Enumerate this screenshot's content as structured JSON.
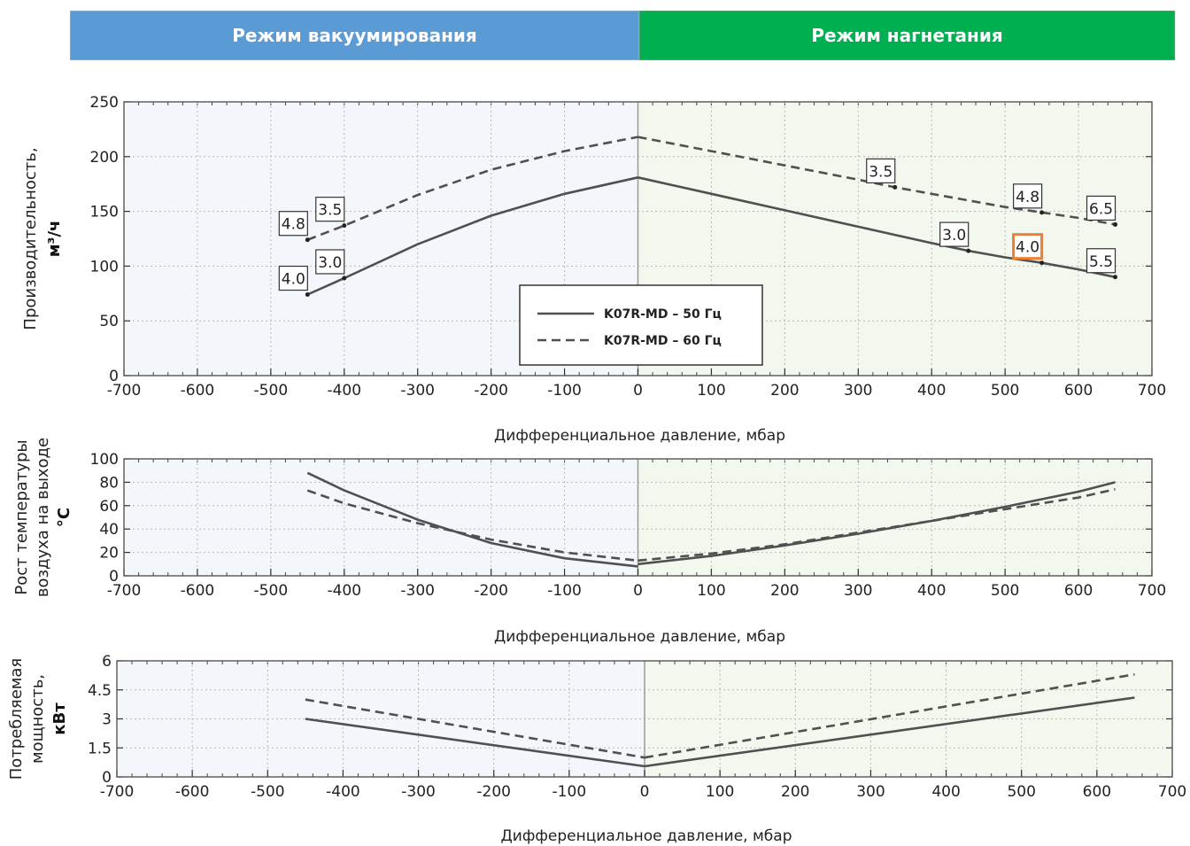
{
  "header": {
    "vacuum_label": "Режим вакуумирования",
    "pressure_label": "Режим нагнетания",
    "vacuum_color": "#5b9bd5",
    "pressure_color": "#00b050"
  },
  "colors": {
    "vacuum_bg": "#f3f7fc",
    "pressure_bg": "#f3f8ef",
    "line": "#505050",
    "highlight": "#ed7d31"
  },
  "legend": {
    "solid_label": "K07R-MD – 50 Гц",
    "dashed_label": "K07R-MD – 60 Гц"
  },
  "chart_data": [
    {
      "type": "line",
      "title": "",
      "xlabel": "Дифференциальное давление, мбар",
      "ylabel_line1": "Производительность,",
      "ylabel_line2": "м³/ч",
      "xlim": [
        -700,
        700
      ],
      "ylim": [
        0,
        250
      ],
      "xticks": [
        -700,
        -600,
        -500,
        -400,
        -300,
        -200,
        -100,
        0,
        100,
        200,
        300,
        400,
        500,
        600,
        700
      ],
      "yticks": [
        0,
        50,
        100,
        150,
        200,
        250
      ],
      "grid": true,
      "legend_position": "center",
      "series": [
        {
          "name": "K07R-MD – 50 Гц",
          "style": "solid",
          "vacuum": {
            "x": [
              -450,
              -400,
              -300,
              -200,
              -100,
              0
            ],
            "y": [
              74,
              89,
              120,
              146,
              166,
              181
            ]
          },
          "pressure": {
            "x": [
              0,
              100,
              200,
              300,
              400,
              450,
              500,
              550,
              600,
              650
            ],
            "y": [
              181,
              166,
              151,
              136,
              121,
              114,
              108,
              103,
              97,
              90
            ]
          }
        },
        {
          "name": "K07R-MD – 60 Гц",
          "style": "dashed",
          "vacuum": {
            "x": [
              -450,
              -400,
              -300,
              -200,
              -100,
              0
            ],
            "y": [
              124,
              137,
              165,
              188,
              205,
              218
            ]
          },
          "pressure": {
            "x": [
              0,
              100,
              200,
              300,
              350,
              400,
              500,
              550,
              600,
              650
            ],
            "y": [
              218,
              205,
              192,
              179,
              172,
              166,
              154,
              149,
              144,
              138
            ]
          }
        }
      ],
      "annotations": [
        {
          "text": "4.8",
          "x": -450,
          "y": 124
        },
        {
          "text": "3.5",
          "x": -400,
          "y": 137
        },
        {
          "text": "4.0",
          "x": -450,
          "y": 74
        },
        {
          "text": "3.0",
          "x": -400,
          "y": 89
        },
        {
          "text": "3.5",
          "x": 350,
          "y": 172
        },
        {
          "text": "4.8",
          "x": 550,
          "y": 149
        },
        {
          "text": "6.5",
          "x": 650,
          "y": 138
        },
        {
          "text": "3.0",
          "x": 450,
          "y": 114
        },
        {
          "text": "4.0",
          "x": 550,
          "y": 103,
          "highlight": true
        },
        {
          "text": "5.5",
          "x": 650,
          "y": 90
        }
      ]
    },
    {
      "type": "line",
      "title": "",
      "xlabel": "Дифференциальное давление, мбар",
      "ylabel_line1": "Рост температуры",
      "ylabel_line2": "воздуха на выходе",
      "ylabel_line3": "°C",
      "xlim": [
        -700,
        700
      ],
      "ylim": [
        0,
        100
      ],
      "xticks": [
        -700,
        -600,
        -500,
        -400,
        -300,
        -200,
        -100,
        0,
        100,
        200,
        300,
        400,
        500,
        600,
        700
      ],
      "yticks": [
        0,
        20,
        40,
        60,
        80,
        100
      ],
      "grid": true,
      "series": [
        {
          "name": "K07R-MD – 50 Гц",
          "style": "solid",
          "vacuum": {
            "x": [
              -450,
              -400,
              -300,
              -200,
              -100,
              0
            ],
            "y": [
              88,
              73,
              48,
              28,
              15,
              8
            ]
          },
          "pressure": {
            "x": [
              0,
              100,
              200,
              300,
              400,
              500,
              600,
              650
            ],
            "y": [
              10,
              17,
              26,
              36,
              47,
              59,
              72,
              80
            ]
          }
        },
        {
          "name": "K07R-MD – 60 Гц",
          "style": "dashed",
          "vacuum": {
            "x": [
              -450,
              -400,
              -300,
              -200,
              -100,
              0
            ],
            "y": [
              73,
              62,
              45,
              31,
              20,
              13
            ]
          },
          "pressure": {
            "x": [
              0,
              100,
              200,
              300,
              400,
              500,
              600,
              650
            ],
            "y": [
              13,
              19,
              27,
              37,
              47,
              57,
              67,
              74
            ]
          }
        }
      ]
    },
    {
      "type": "line",
      "title": "",
      "xlabel": "Дифференциальное давление, мбар",
      "ylabel_line1": "Потребляемая",
      "ylabel_line2": "мощность,",
      "ylabel_line3": "кВт",
      "xlim": [
        -700,
        700
      ],
      "ylim": [
        0,
        6
      ],
      "xticks": [
        -700,
        -600,
        -500,
        -400,
        -300,
        -200,
        -100,
        0,
        100,
        200,
        300,
        400,
        500,
        600,
        700
      ],
      "yticks": [
        "0",
        "1.5",
        "3",
        "4.5",
        "6"
      ],
      "grid": true,
      "series": [
        {
          "name": "K07R-MD – 50 Гц",
          "style": "solid",
          "vacuum": {
            "x": [
              -450,
              0
            ],
            "y": [
              3.0,
              0.55
            ]
          },
          "pressure": {
            "x": [
              0,
              650
            ],
            "y": [
              0.55,
              4.1
            ]
          }
        },
        {
          "name": "K07R-MD – 60 Гц",
          "style": "dashed",
          "vacuum": {
            "x": [
              -450,
              0
            ],
            "y": [
              4.0,
              1.0
            ]
          },
          "pressure": {
            "x": [
              0,
              650
            ],
            "y": [
              1.0,
              5.3
            ]
          }
        }
      ]
    }
  ]
}
